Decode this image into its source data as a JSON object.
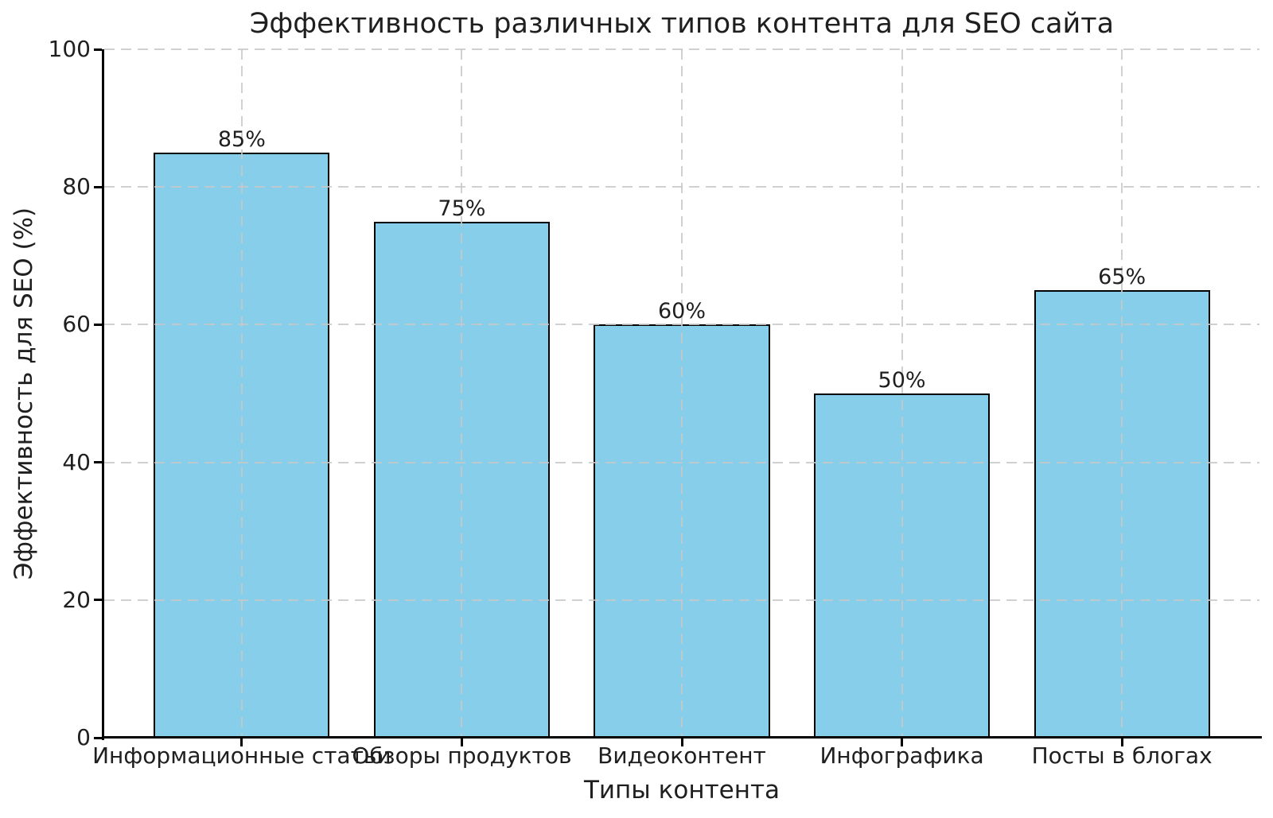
{
  "chart_data": {
    "type": "bar",
    "title": "Эффективность различных типов контента для SEO сайта",
    "xlabel": "Типы контента",
    "ylabel": "Эффективность для SEO (%)",
    "categories": [
      "Информационные статьи",
      "Обзоры продуктов",
      "Видеоконтент",
      "Инфографика",
      "Посты в блогах"
    ],
    "values": [
      85,
      75,
      60,
      50,
      65
    ],
    "bar_labels": [
      "85%",
      "75%",
      "60%",
      "50%",
      "65%"
    ],
    "y_ticks": [
      0,
      20,
      40,
      60,
      80,
      100
    ],
    "y_tick_labels": [
      "0",
      "20",
      "40",
      "60",
      "80",
      "100"
    ],
    "ylim": [
      0,
      100
    ],
    "grid": "dashed, both axes, drawn over bars",
    "legend": "none",
    "colors": {
      "bar_fill": "#87CEEB",
      "bar_edge": "#000000",
      "grid": "#c8c8c8",
      "spine": "#000000",
      "text": "#1f1f1f",
      "background": "#ffffff"
    }
  }
}
